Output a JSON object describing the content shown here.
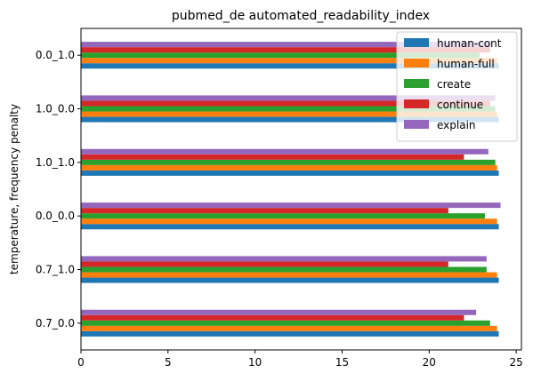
{
  "chart_data": {
    "type": "bar",
    "orientation": "horizontal",
    "title": "pubmed_de automated_readability_index",
    "xlabel": "",
    "ylabel": "temperature, frequency penalty",
    "xlim": [
      0,
      25.3
    ],
    "xticks": [
      0,
      5,
      10,
      15,
      20,
      25
    ],
    "categories": [
      "0.0_1.0",
      "1.0_0.0",
      "1.0_1.0",
      "0.0_0.0",
      "0.7_1.0",
      "0.7_0.0"
    ],
    "series": [
      {
        "name": "human-cont",
        "color": "#1f77b4",
        "values": [
          24.0,
          24.0,
          24.0,
          24.0,
          24.0,
          24.0
        ]
      },
      {
        "name": "human-full",
        "color": "#ff7f0e",
        "values": [
          23.9,
          23.9,
          23.9,
          23.9,
          23.9,
          23.9
        ]
      },
      {
        "name": "create",
        "color": "#2ca02c",
        "values": [
          22.9,
          23.8,
          23.8,
          23.2,
          23.3,
          23.5
        ]
      },
      {
        "name": "continue",
        "color": "#d62728",
        "values": [
          23.5,
          23.5,
          22.0,
          21.1,
          21.1,
          22.0
        ]
      },
      {
        "name": "explain",
        "color": "#9467bd",
        "values": [
          23.6,
          23.8,
          23.4,
          24.1,
          23.3,
          22.7
        ]
      }
    ],
    "legend_position": "upper-right",
    "grid": false
  }
}
